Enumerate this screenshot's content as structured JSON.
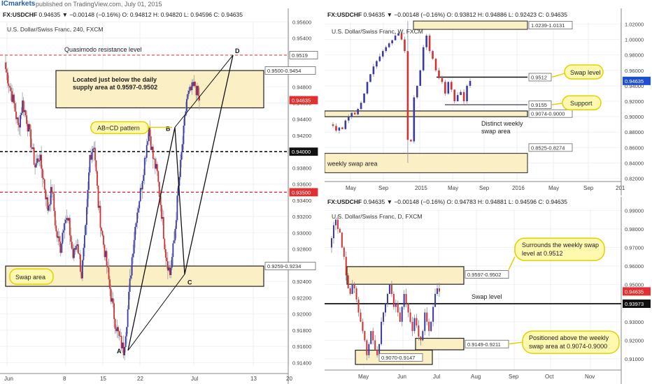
{
  "header": {
    "brand": "ICmarkets",
    "published": "published on TradingView.com, July 01, 2015"
  },
  "colors": {
    "up": "#3a3aa6",
    "down": "#d33030",
    "zone_fill": "#fbefc6",
    "zone_stroke": "#222222",
    "callout_fill": "#fff9b0",
    "callout_stroke": "#e2d000",
    "last_price": "#e03030",
    "support_line": "#222222",
    "resistance_line": "#e03030"
  },
  "chart_data": [
    {
      "type": "candlestick",
      "panel": "h4",
      "header": "FX:USDCHF 0.94635 ▼ −0.00148 (−0.16%) O: 0.94812 H: 0.94820 L: 0.94596 C: 0.94635",
      "subtitle": "U.S. Dollar/Swiss Franc, 240, FXCM",
      "ylim": [
        0.9136,
        0.9568
      ],
      "yticks": [
        "0.95600",
        "0.95400",
        "0.95200",
        "0.95000",
        "0.94800",
        "0.94600",
        "0.94400",
        "0.94200",
        "0.94000",
        "0.93800",
        "0.93600",
        "0.93400",
        "0.93200",
        "0.93000",
        "0.92800",
        "0.92600",
        "0.92400",
        "0.92200",
        "0.92000",
        "0.91800",
        "0.91600",
        "0.91400"
      ],
      "xticks": [
        "Jun",
        "8",
        "15",
        "22",
        "Jul",
        "13",
        "20"
      ],
      "x_range": [
        "May 29",
        "Jul 23"
      ],
      "series_close": [
        0.9502,
        0.948,
        0.9458,
        0.943,
        0.946,
        0.944,
        0.9412,
        0.9382,
        0.9395,
        0.9365,
        0.933,
        0.9355,
        0.93,
        0.9282,
        0.932,
        0.931,
        0.927,
        0.929,
        0.9248,
        0.9302,
        0.9395,
        0.941,
        0.9335,
        0.9295,
        0.926,
        0.9222,
        0.919,
        0.917,
        0.9155,
        0.9205,
        0.927,
        0.932,
        0.935,
        0.939,
        0.943,
        0.9392,
        0.9372,
        0.9325,
        0.9275,
        0.9249,
        0.929,
        0.9355,
        0.941,
        0.9465,
        0.9475,
        0.9482,
        0.9463
      ],
      "last_price": 0.94635,
      "levels": [
        {
          "label": "0.9519",
          "value": 0.9519,
          "style": "red-dashed"
        },
        {
          "label": "0.94000",
          "value": 0.94,
          "style": "black-dashed"
        },
        {
          "label": "0.93500",
          "value": 0.935,
          "style": "red-dashed"
        }
      ],
      "zones": [
        {
          "label": "0.9500-0.9454",
          "high": 0.95,
          "low": 0.9454
        },
        {
          "label": "0.9259-0.9234",
          "high": 0.9259,
          "low": 0.9234
        }
      ],
      "pattern_points": [
        {
          "label": "A",
          "x": "Jun 19",
          "y": 0.9155
        },
        {
          "label": "B",
          "x": "Jun 24",
          "y": 0.943
        },
        {
          "label": "C",
          "x": "Jun 29",
          "y": 0.9249
        },
        {
          "label": "D",
          "x": "Jul 04",
          "y": 0.9519
        }
      ],
      "annotations": [
        "Quasimodo resistance level",
        "Located just below the daily supply area at 0.9597-0.9502",
        "AB=CD pattern",
        "Swap area"
      ]
    },
    {
      "type": "candlestick",
      "panel": "weekly",
      "header": "FX:USDCHF 0.94635 ▼ −0.00148 (−0.16%) O: 0.93812 H: 0.94886 L: 0.92423 C: 0.94635",
      "subtitle": "U.S. Dollar/Swiss Franc, W, FXCM",
      "ylim": [
        0.816,
        1.024
      ],
      "yticks": [
        "1.02000",
        "1.00000",
        "0.98000",
        "0.96000",
        "0.94000",
        "0.92000",
        "0.90000",
        "0.88000",
        "0.86000",
        "0.84000",
        "0.82000"
      ],
      "xticks": [
        "May",
        "Sep",
        "2015",
        "May",
        "Sep",
        "2016",
        "May",
        "Sep",
        "201"
      ],
      "last_price": 0.94635,
      "levels": [
        {
          "label": "0.9512",
          "value": 0.9512
        },
        {
          "label": "0.9155",
          "value": 0.9155
        }
      ],
      "zones": [
        {
          "label": "1.0239-1.0131",
          "high": 1.0239,
          "low": 1.0131
        },
        {
          "label": "0.9074-0.9000",
          "high": 0.9074,
          "low": 0.9
        },
        {
          "label": "0.8525-0.8274",
          "high": 0.8525,
          "low": 0.8274
        }
      ],
      "annotations": [
        "Swap level",
        "Support",
        "Distinct weekly swap area",
        "weekly swap area"
      ]
    },
    {
      "type": "candlestick",
      "panel": "daily",
      "header": "FX:USDCHF 0.94635 ▼ −0.00148 (−0.16%) O: 0.94783 H: 0.94881 L: 0.94596 C: 0.94635",
      "subtitle": "U.S. Dollar/Swiss Franc, D, FXCM",
      "ylim": [
        0.904,
        0.992
      ],
      "yticks": [
        "0.99000",
        "0.98000",
        "0.97000",
        "0.96000",
        "0.95000",
        "0.94000",
        "0.93000",
        "0.92000",
        "0.91000"
      ],
      "xticks": [
        "May",
        "Jun",
        "Jul",
        "Aug",
        "Sep",
        "Oct",
        "Nov"
      ],
      "last_price": 0.94635,
      "levels": [
        {
          "label": "0.93973",
          "value": 0.93973
        }
      ],
      "zones": [
        {
          "label": "0.9597-0.9502",
          "high": 0.9597,
          "low": 0.9502
        },
        {
          "label": "0.9149-0.9211",
          "high": 0.9211,
          "low": 0.9149
        },
        {
          "label": "0.9070-0.9147",
          "high": 0.9147,
          "low": 0.907
        }
      ],
      "annotations": [
        "Surrounds the weekly swap level at 0.9512",
        "Swap level",
        "Positioned above the weekly swap area at 0.9074-0.9000"
      ]
    }
  ],
  "texts": {
    "h4_header_sym": "FX:USDCHF",
    "h4_header_rest": "0.94635 ▼ −0.00148 (−0.16%) O: 0.94812 H: 0.94820 L: 0.94596 C: 0.94635",
    "w_header_sym": "FX:USDCHF",
    "w_header_rest": "0.94635 ▼ −0.00148 (−0.16%) O: 0.93812 H: 0.94886 L: 0.92423 C: 0.94635",
    "d_header_sym": "FX:USDCHF",
    "d_header_rest": "0.94635 ▼ −0.00148 (−0.16%) O: 0.94783 H: 0.94881 L: 0.94596 C: 0.94635",
    "h4_sub": "U.S. Dollar/Swiss Franc, 240, FXCM",
    "w_sub": "U.S. Dollar/Swiss Franc, W, FXCM",
    "d_sub": "U.S. Dollar/Swiss Franc, D, FXCM",
    "qm": "Quasimodo resistance level",
    "located1": "Located just below the daily",
    "located2": "supply area at 0.9597-0.9502",
    "abcd": "AB=CD pattern",
    "swaparea": "Swap area",
    "swaplevel": "Swap level",
    "support": "Support",
    "distinct1": "Distinct weekly",
    "distinct2": "swap area",
    "wkswap": "weekly swap area",
    "surr1": "Surrounds the weekly swap",
    "surr2": "level at 0.9512",
    "dswap": "Swap level",
    "pos1": "Positioned above the weekly",
    "pos2": "swap area at 0.9074-0.9000"
  }
}
